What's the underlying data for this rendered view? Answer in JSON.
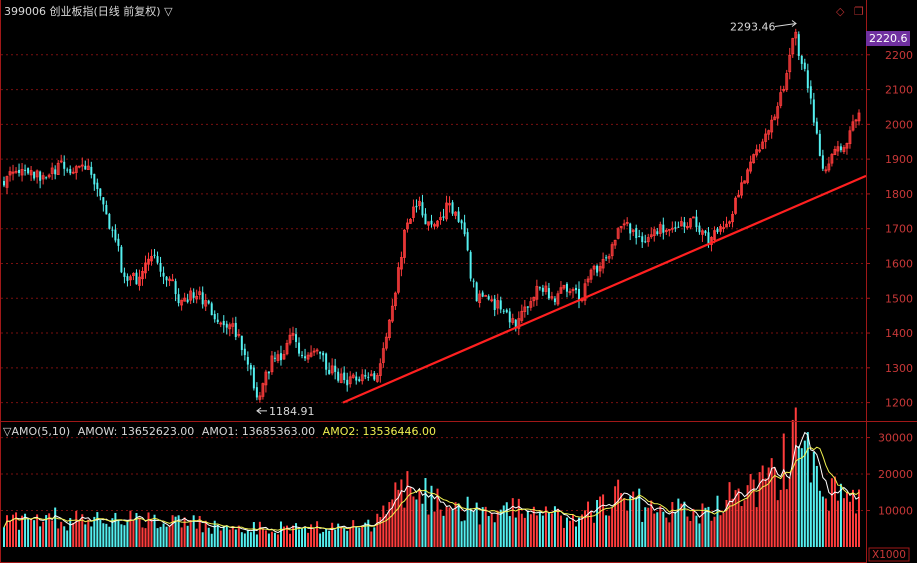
{
  "header": {
    "symbol": "399006",
    "name": "创业板指(日线 前复权)",
    "menu_glyph": "▽"
  },
  "window_icons": [
    "diamond-icon",
    "restore-icon"
  ],
  "price_badge": "2220.6",
  "x1000_label": "X1000",
  "indicator_header": {
    "glyph": "▽",
    "name": "AMO(5,10)",
    "amow": "AMOW: 13652623.00",
    "amo1": "AMO1: 13685363.00",
    "amo2": "AMO2: 13536446.00"
  },
  "colors": {
    "up": "#ff3c3c",
    "down": "#54f0f0",
    "trendline": "#ff2020",
    "amo1_line": "#ffffff",
    "amo2_line": "#f0f050",
    "grid": "#7a1010",
    "axis": "#a01818",
    "badge": "#7030a0"
  },
  "chart_data": [
    {
      "type": "candlestick",
      "title": "399006 创业板指(日线 前复权)",
      "ylim": [
        1150,
        2300
      ],
      "y_ticks": [
        1200,
        1300,
        1400,
        1500,
        1600,
        1700,
        1800,
        1900,
        2000,
        2100,
        2200
      ],
      "annotations": [
        {
          "text": "2293.46",
          "kind": "max"
        },
        {
          "text": "1184.91",
          "kind": "min"
        }
      ],
      "current_price": 2220.6,
      "trend_line": {
        "from": 1200,
        "to": 1852
      },
      "num_bars": 285,
      "price_path_anchors": [
        [
          0,
          1840
        ],
        [
          10,
          1880
        ],
        [
          25,
          1860
        ],
        [
          40,
          1840
        ],
        [
          55,
          1880
        ],
        [
          70,
          1860
        ],
        [
          85,
          1870
        ],
        [
          100,
          1760
        ],
        [
          115,
          1650
        ],
        [
          120,
          1550
        ],
        [
          135,
          1560
        ],
        [
          150,
          1620
        ],
        [
          165,
          1560
        ],
        [
          180,
          1480
        ],
        [
          190,
          1520
        ],
        [
          205,
          1480
        ],
        [
          215,
          1430
        ],
        [
          230,
          1420
        ],
        [
          240,
          1360
        ],
        [
          250,
          1260
        ],
        [
          257,
          1200
        ],
        [
          262,
          1260
        ],
        [
          270,
          1330
        ],
        [
          280,
          1340
        ],
        [
          290,
          1390
        ],
        [
          300,
          1320
        ],
        [
          315,
          1350
        ],
        [
          325,
          1300
        ],
        [
          335,
          1280
        ],
        [
          345,
          1260
        ],
        [
          360,
          1280
        ],
        [
          375,
          1275
        ],
        [
          385,
          1400
        ],
        [
          395,
          1540
        ],
        [
          405,
          1720
        ],
        [
          415,
          1780
        ],
        [
          425,
          1720
        ],
        [
          435,
          1700
        ],
        [
          445,
          1760
        ],
        [
          455,
          1740
        ],
        [
          465,
          1680
        ],
        [
          470,
          1560
        ],
        [
          475,
          1500
        ],
        [
          485,
          1490
        ],
        [
          495,
          1480
        ],
        [
          505,
          1460
        ],
        [
          515,
          1430
        ],
        [
          525,
          1480
        ],
        [
          540,
          1530
        ],
        [
          555,
          1500
        ],
        [
          570,
          1540
        ],
        [
          580,
          1500
        ],
        [
          590,
          1560
        ],
        [
          600,
          1600
        ],
        [
          610,
          1640
        ],
        [
          620,
          1720
        ],
        [
          630,
          1700
        ],
        [
          640,
          1680
        ],
        [
          650,
          1670
        ],
        [
          660,
          1700
        ],
        [
          670,
          1680
        ],
        [
          680,
          1710
        ],
        [
          690,
          1730
        ],
        [
          700,
          1690
        ],
        [
          710,
          1670
        ],
        [
          720,
          1700
        ],
        [
          730,
          1730
        ],
        [
          740,
          1800
        ],
        [
          750,
          1880
        ],
        [
          760,
          1940
        ],
        [
          770,
          1980
        ],
        [
          778,
          2050
        ],
        [
          785,
          2120
        ],
        [
          790,
          2200
        ],
        [
          796,
          2270
        ],
        [
          800,
          2200
        ],
        [
          806,
          2150
        ],
        [
          812,
          2060
        ],
        [
          818,
          1950
        ],
        [
          824,
          1870
        ],
        [
          830,
          1880
        ],
        [
          836,
          1940
        ],
        [
          842,
          1920
        ],
        [
          848,
          1960
        ],
        [
          854,
          2010
        ],
        [
          860,
          2030
        ]
      ],
      "rng_seed": 42
    },
    {
      "type": "bar",
      "title": "AMO(5,10)",
      "unit": "X1000",
      "ylim": [
        0,
        34000
      ],
      "y_ticks": [
        10000,
        20000,
        30000
      ],
      "series": [
        {
          "name": "AMO",
          "kind": "bars"
        },
        {
          "name": "AMO1",
          "kind": "line",
          "period": 5
        },
        {
          "name": "AMO2",
          "kind": "line",
          "period": 10
        }
      ],
      "volume_path_anchors": [
        [
          0,
          6000
        ],
        [
          30,
          8500
        ],
        [
          60,
          7500
        ],
        [
          100,
          6800
        ],
        [
          140,
          7500
        ],
        [
          180,
          6500
        ],
        [
          220,
          5500
        ],
        [
          260,
          5200
        ],
        [
          300,
          5500
        ],
        [
          340,
          5000
        ],
        [
          370,
          5800
        ],
        [
          385,
          9000
        ],
        [
          400,
          16500
        ],
        [
          412,
          19000
        ],
        [
          420,
          15500
        ],
        [
          430,
          14000
        ],
        [
          445,
          12000
        ],
        [
          460,
          11000
        ],
        [
          475,
          9000
        ],
        [
          500,
          9500
        ],
        [
          520,
          10000
        ],
        [
          540,
          9000
        ],
        [
          560,
          8000
        ],
        [
          580,
          8500
        ],
        [
          600,
          11000
        ],
        [
          615,
          13500
        ],
        [
          625,
          13000
        ],
        [
          640,
          11500
        ],
        [
          660,
          10500
        ],
        [
          690,
          9500
        ],
        [
          710,
          10500
        ],
        [
          730,
          13000
        ],
        [
          750,
          14500
        ],
        [
          770,
          18000
        ],
        [
          785,
          23000
        ],
        [
          797,
          28000
        ],
        [
          805,
          25000
        ],
        [
          815,
          20000
        ],
        [
          825,
          16000
        ],
        [
          840,
          13500
        ],
        [
          850,
          12500
        ],
        [
          860,
          13500
        ]
      ]
    }
  ]
}
